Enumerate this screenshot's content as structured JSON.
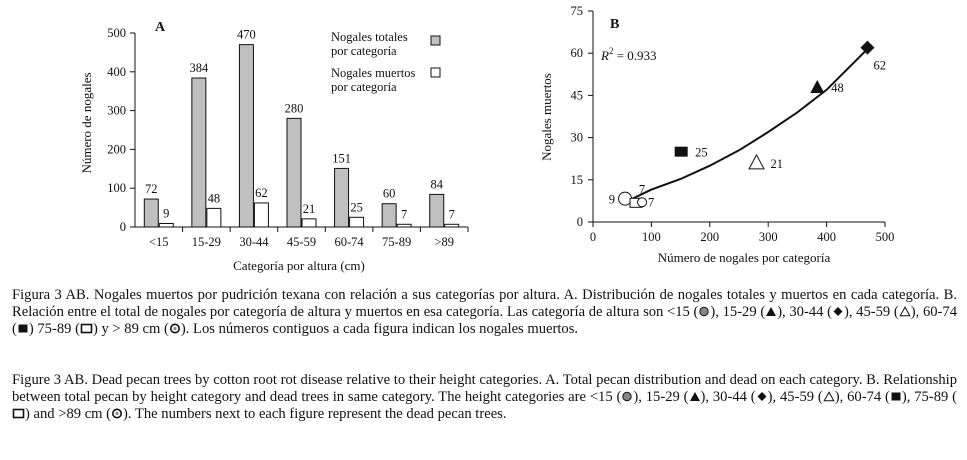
{
  "chart_data": [
    {
      "type": "bar",
      "panel": "A",
      "categories": [
        "<15",
        "15-29",
        "30-44",
        "45-59",
        "60-74",
        "75-89",
        ">89"
      ],
      "series": [
        {
          "name": "Nogales totales por categoría",
          "values": [
            72,
            384,
            470,
            280,
            151,
            60,
            84
          ],
          "color": "#c0c0c0"
        },
        {
          "name": "Nogales muertos por categoría",
          "values": [
            9,
            48,
            62,
            21,
            25,
            7,
            7
          ],
          "color": "#ffffff"
        }
      ],
      "data_labels_total": [
        "72",
        "384",
        "470",
        "280",
        "151",
        "60",
        "84"
      ],
      "data_labels_dead": [
        "9",
        "48",
        "62",
        "21",
        "25",
        "7",
        "7"
      ],
      "legend": [
        "Nogales totales",
        "por categoría",
        "Nogales muertos",
        "por categoría"
      ],
      "xlabel": "Categoría por altura (cm)",
      "ylabel": "Número de nogales",
      "ylim": [
        0,
        500
      ],
      "yticks": [
        0,
        100,
        200,
        300,
        400,
        500
      ],
      "ytick_labels": [
        "0",
        "100",
        "200",
        "300",
        "400",
        "500"
      ]
    },
    {
      "type": "scatter",
      "panel": "B",
      "points": [
        {
          "x": 72,
          "y": 9,
          "label": "9",
          "marker": "circle"
        },
        {
          "x": 384,
          "y": 48,
          "label": "48",
          "marker": "triangle-filled"
        },
        {
          "x": 470,
          "y": 62,
          "label": "62",
          "marker": "diamond-filled"
        },
        {
          "x": 280,
          "y": 21,
          "label": "21",
          "marker": "triangle-open"
        },
        {
          "x": 151,
          "y": 25,
          "label": "25",
          "marker": "square-filled"
        },
        {
          "x": 60,
          "y": 7,
          "label": "7",
          "marker": "square-open"
        },
        {
          "x": 84,
          "y": 7,
          "label": "7",
          "marker": "circle-small"
        }
      ],
      "trendline": [
        [
          60,
          7.5
        ],
        [
          100,
          11.5
        ],
        [
          150,
          15.3
        ],
        [
          200,
          20
        ],
        [
          250,
          25.5
        ],
        [
          300,
          32
        ],
        [
          350,
          39
        ],
        [
          400,
          47
        ],
        [
          470,
          61.5
        ]
      ],
      "annotation": "R² = 0.933",
      "annotation_parts": [
        "R",
        "2",
        " = 0.933"
      ],
      "xlabel": "Número de nogales por categoría",
      "ylabel": "Nogales muertos",
      "xlim": [
        0,
        500
      ],
      "ylim": [
        0,
        75
      ],
      "xticks": [
        0,
        100,
        200,
        300,
        400,
        500
      ],
      "xtick_labels": [
        "0",
        "100",
        "200",
        "300",
        "400",
        "500"
      ],
      "yticks": [
        0,
        15,
        30,
        45,
        60,
        75
      ],
      "ytick_labels": [
        "0",
        "15",
        "30",
        "45",
        "60",
        "75"
      ]
    }
  ],
  "panel_labels": {
    "a": "A",
    "b": "B"
  },
  "captions": {
    "es": {
      "before": "Figura 3 AB. Nogales muertos por pudrición texana con relación a sus categorías por altura. A. Distribución de nogales totales y muertos en cada categoría. B. Relación entre el total de nogales por categoría de altura y muertos en esa categoría. Las categoría de altura son <15 (",
      "s1": "), 15-29 (",
      "s2": "), 30-44 (",
      "s3": "), 45-59 (",
      "s4": "), 60-74 (",
      "s5": ") 75-89 (",
      "s6": ") y > 89 cm (",
      "end": "). Los números contiguos a cada figura indican los nogales muertos."
    },
    "en": {
      "before": "Figure 3 AB. Dead pecan trees by cotton root rot disease relative to their height categories. A. Total pecan  distribution and dead on each category. B. Relationship between total pecan by height category and dead trees in same category. The height categories are <15 (",
      "s1": "), 15-29 (",
      "s2": "), 30-44 (",
      "s3": "), 45-59 (",
      "s4": "), 60-74 (",
      "s5": "), 75-89 (",
      "s6": ") and >89 cm (",
      "end": "). The numbers next to each figure represent the dead pecan trees."
    }
  }
}
